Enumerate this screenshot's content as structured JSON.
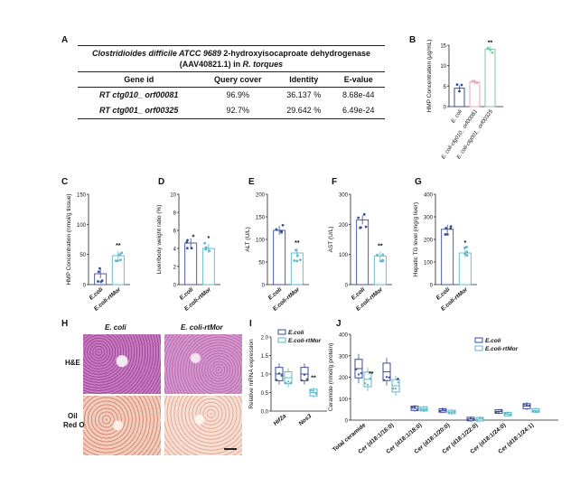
{
  "letters": {
    "A": "A",
    "B": "B",
    "C": "C",
    "D": "D",
    "E": "E",
    "F": "F",
    "G": "G",
    "H": "H",
    "I": "I",
    "J": "J"
  },
  "table": {
    "title_italic": "Clostridioides difficile ATCC 9689",
    "title_rest": " 2-hydroxyisocaproate dehydrogenase",
    "title_line2_a": "(AAV40821.1) in ",
    "title_line2_b": "R. torques",
    "headers": [
      "Gene id",
      "Query cover",
      "Identity",
      "E-value"
    ],
    "rows": [
      {
        "gene": "RT ctg010_ orf00081",
        "cover": "96.9%",
        "identity": "36.137 %",
        "evalue": "8.68e-44"
      },
      {
        "gene": "RT ctg001_ orf00325",
        "cover": "92.7%",
        "identity": "29.642 %",
        "evalue": "6.49e-24"
      }
    ]
  },
  "colors": {
    "dark": "#3a4b9c",
    "light": "#5fb6c6",
    "pink": "#e8a3b8",
    "green": "#7cc9a0"
  },
  "panelB": {
    "ylabel": "HMP Concentration (μg/mL)",
    "ticks": [
      "0",
      "5",
      "10",
      "15"
    ],
    "categories": [
      "E. coli",
      "E. coli-ctg010_ orf00081",
      "E. coli-ctg001_ orf00325"
    ],
    "sig": "**"
  },
  "panelC": {
    "ylabel": "HMP Concentration (nmol/g tissue)",
    "ticks": [
      "0",
      "50",
      "100",
      "150"
    ],
    "categories": [
      "E.coli",
      "E.coli-rtMor"
    ],
    "sig": "**"
  },
  "panelD": {
    "ylabel": "Liver/body weight ratio (%)",
    "ticks": [
      "0",
      "2",
      "4",
      "6",
      "8",
      "10"
    ],
    "categories": [
      "E.coli",
      "E.coli-rtMor"
    ],
    "sig": "*"
  },
  "panelE": {
    "ylabel": "ALT (U/L)",
    "ticks": [
      "0",
      "50",
      "100",
      "150",
      "200"
    ],
    "categories": [
      "E.coli",
      "E.coli-rtMor"
    ],
    "sig": "**"
  },
  "panelF": {
    "ylabel": "AST (U/L)",
    "ticks": [
      "0",
      "100",
      "200",
      "300"
    ],
    "categories": [
      "E.coli",
      "E.coli-rtMor"
    ],
    "sig": "**"
  },
  "panelG": {
    "ylabel": "Hepatic TG level (mg/g liver)",
    "ticks": [
      "0",
      "100",
      "200",
      "300",
      "400"
    ],
    "categories": [
      "E.coli",
      "E.coli-rtMor"
    ],
    "sig": "*"
  },
  "panelH": {
    "col1": "E. coli",
    "col2": "E. coli-rtMor",
    "row1": "H&E",
    "row2a": "Oil",
    "row2b": "Red O"
  },
  "panelI": {
    "ylabel": "Relative mRNA expression",
    "ticks": [
      "0.0",
      "0.5",
      "1.0",
      "1.5",
      "2.0"
    ],
    "categories": [
      "Hif2a",
      "Nos3"
    ],
    "legend": [
      "E.coli",
      "E.coli-rtMor"
    ],
    "sig": "**"
  },
  "panelJ": {
    "ylabel": "Ceramide (nmol/g protein)",
    "ticks": [
      "0",
      "100",
      "200",
      "300",
      "400"
    ],
    "legend": [
      "E.coli",
      "E.coli-rtMor"
    ],
    "categories": [
      "Total ceramide",
      "Cer (d18:1/16:0)",
      "Cer (d18:1/18:0)",
      "Cer (d18:1/20:0)",
      "Cer (d18:1/22:0)",
      "Cer (d18:1/24:0)",
      "Cer (d18:1/24:1)"
    ],
    "sig": [
      "**",
      "*"
    ]
  },
  "chart_data": [
    {
      "type": "bar",
      "panel": "B",
      "categories": [
        "E. coli",
        "E. coli-ctg010_ orf00081",
        "E. coli-ctg001_ orf00325"
      ],
      "values": [
        4.5,
        6.0,
        14.0
      ],
      "ylim": [
        0,
        15
      ],
      "ylabel": "HMP Concentration (μg/mL)"
    },
    {
      "type": "bar",
      "panel": "C",
      "categories": [
        "E.coli",
        "E.coli-rtMor"
      ],
      "values": [
        18,
        48
      ],
      "ylim": [
        0,
        150
      ],
      "ylabel": "HMP Concentration (nmol/g tissue)"
    },
    {
      "type": "bar",
      "panel": "D",
      "categories": [
        "E.coli",
        "E.coli-rtMor"
      ],
      "values": [
        4.6,
        4.0
      ],
      "ylim": [
        0,
        10
      ],
      "ylabel": "Liver/body weight ratio (%)"
    },
    {
      "type": "bar",
      "panel": "E",
      "categories": [
        "E.coli",
        "E.coli-rtMor"
      ],
      "values": [
        120,
        70
      ],
      "ylim": [
        0,
        200
      ],
      "ylabel": "ALT (U/L)"
    },
    {
      "type": "bar",
      "panel": "F",
      "categories": [
        "E.coli",
        "E.coli-rtMor"
      ],
      "values": [
        215,
        95
      ],
      "ylim": [
        0,
        300
      ],
      "ylabel": "AST (U/L)"
    },
    {
      "type": "bar",
      "panel": "G",
      "categories": [
        "E.coli",
        "E.coli-rtMor"
      ],
      "values": [
        245,
        140
      ],
      "ylim": [
        0,
        400
      ],
      "ylabel": "Hepatic TG level (mg/g liver)"
    },
    {
      "type": "box",
      "panel": "I",
      "categories": [
        "Hif2a",
        "Nos3"
      ],
      "series": [
        {
          "name": "E.coli",
          "values": [
            1.0,
            1.0
          ]
        },
        {
          "name": "E.coli-rtMor",
          "values": [
            0.9,
            0.5
          ]
        }
      ],
      "ylim": [
        0,
        2.0
      ],
      "ylabel": "Relative mRNA expression"
    },
    {
      "type": "box",
      "panel": "J",
      "categories": [
        "Total ceramide",
        "Cer (d18:1/16:0)",
        "Cer (d18:1/18:0)",
        "Cer (d18:1/20:0)",
        "Cer (d18:1/22:0)",
        "Cer (d18:1/24:0)",
        "Cer (d18:1/24:1)"
      ],
      "series": [
        {
          "name": "E.coli",
          "values": [
            240,
            225,
            55,
            45,
            5,
            40,
            65
          ]
        },
        {
          "name": "E.coli-rtMor",
          "values": [
            190,
            160,
            52,
            38,
            4,
            28,
            45
          ]
        }
      ],
      "ylim": [
        0,
        400
      ],
      "ylabel": "Ceramide (nmol/g protein)"
    }
  ]
}
